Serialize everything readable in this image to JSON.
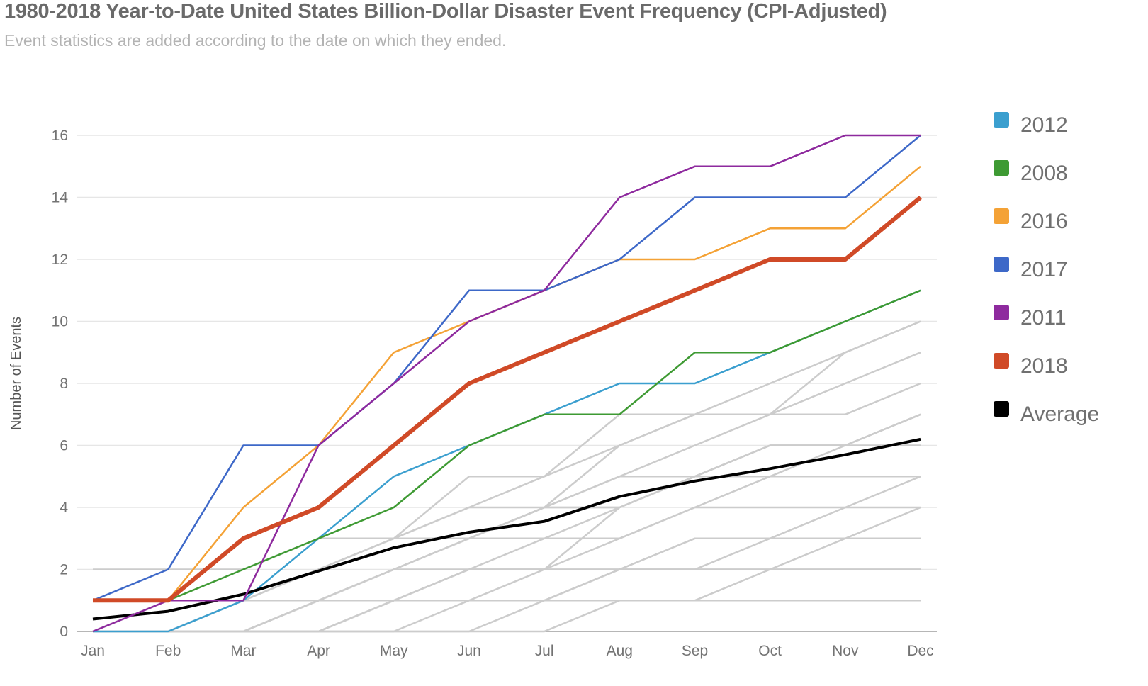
{
  "header": {
    "title": "1980-2018 Year-to-Date United States Billion-Dollar Disaster Event Frequency (CPI-Adjusted)",
    "subtitle": "Event statistics are added according to the date on which they ended."
  },
  "chart_data": {
    "type": "line",
    "title": "1980-2018 Year-to-Date United States Billion-Dollar Disaster Event Frequency (CPI-Adjusted)",
    "subtitle": "Event statistics are added according to the date on which they ended.",
    "xlabel": "",
    "ylabel": "Number of Events",
    "x": [
      "Jan",
      "Feb",
      "Mar",
      "Apr",
      "May",
      "Jun",
      "Jul",
      "Aug",
      "Sep",
      "Oct",
      "Nov",
      "Dec"
    ],
    "ylim": [
      0,
      16
    ],
    "yticks": [
      0,
      2,
      4,
      6,
      8,
      10,
      12,
      14,
      16
    ],
    "grid": true,
    "legend_position": "right",
    "series": [
      {
        "name": "2012",
        "color": "#3b9fcf",
        "values": [
          0,
          0,
          1,
          3,
          5,
          6,
          7,
          8,
          8,
          9,
          10,
          11
        ]
      },
      {
        "name": "2008",
        "color": "#3e9a33",
        "values": [
          1,
          1,
          2,
          3,
          4,
          6,
          7,
          7,
          9,
          9,
          10,
          11
        ]
      },
      {
        "name": "2016",
        "color": "#f4a236",
        "values": [
          1,
          1,
          4,
          6,
          9,
          10,
          11,
          12,
          12,
          13,
          13,
          15
        ]
      },
      {
        "name": "2017",
        "color": "#3d68c8",
        "values": [
          1,
          2,
          6,
          6,
          8,
          11,
          11,
          12,
          14,
          14,
          14,
          16
        ]
      },
      {
        "name": "2011",
        "color": "#8e2a9e",
        "values": [
          0,
          1,
          1,
          6,
          8,
          10,
          11,
          14,
          15,
          15,
          16,
          16
        ]
      },
      {
        "name": "2018",
        "color": "#d04a27",
        "values": [
          1,
          1,
          3,
          4,
          6,
          8,
          9,
          10,
          11,
          12,
          12,
          14
        ]
      },
      {
        "name": "Average",
        "color": "#000000",
        "values": [
          0.4,
          0.65,
          1.2,
          1.95,
          2.7,
          3.2,
          3.55,
          4.35,
          4.85,
          5.25,
          5.7,
          6.2
        ]
      }
    ],
    "other_years": {
      "color": "#cccccc",
      "note": "unlabeled gray lines for remaining years (approximate)",
      "series": [
        [
          0,
          0,
          0,
          1,
          2,
          3,
          4,
          6,
          7,
          7,
          9,
          10
        ],
        [
          0,
          0,
          1,
          2,
          3,
          4,
          5,
          6,
          7,
          8,
          9,
          10
        ],
        [
          0,
          1,
          1,
          2,
          3,
          5,
          5,
          7,
          7,
          7,
          8,
          9
        ],
        [
          0,
          0,
          0,
          1,
          2,
          3,
          4,
          5,
          6,
          7,
          7,
          8
        ],
        [
          0,
          0,
          1,
          1,
          2,
          3,
          4,
          5,
          5,
          6,
          6,
          7
        ],
        [
          0,
          0,
          0,
          0,
          1,
          2,
          2,
          4,
          5,
          6,
          6,
          7
        ],
        [
          2,
          2,
          2,
          3,
          3,
          4,
          4,
          4,
          5,
          6,
          6,
          7
        ],
        [
          0,
          0,
          0,
          1,
          2,
          2,
          3,
          4,
          5,
          5,
          6,
          6
        ],
        [
          1,
          1,
          1,
          2,
          3,
          3,
          4,
          4,
          5,
          5,
          5,
          5
        ],
        [
          0,
          0,
          1,
          1,
          2,
          3,
          3,
          3,
          4,
          5,
          5,
          5
        ],
        [
          0,
          0,
          0,
          0,
          1,
          2,
          2,
          3,
          4,
          4,
          4,
          5
        ],
        [
          0,
          0,
          0,
          1,
          1,
          2,
          2,
          2,
          3,
          3,
          4,
          4
        ],
        [
          0,
          0,
          0,
          0,
          1,
          1,
          1,
          2,
          3,
          3,
          3,
          4
        ],
        [
          0,
          0,
          0,
          1,
          1,
          1,
          2,
          2,
          2,
          3,
          3,
          3
        ],
        [
          0,
          0,
          0,
          0,
          0,
          1,
          1,
          2,
          2,
          2,
          3,
          3
        ],
        [
          0,
          0,
          0,
          0,
          0,
          0,
          1,
          2,
          2,
          2,
          2,
          2
        ],
        [
          0,
          0,
          0,
          0,
          1,
          1,
          1,
          1,
          1,
          2,
          2,
          2
        ],
        [
          0,
          0,
          0,
          0,
          0,
          0,
          0,
          1,
          1,
          1,
          1,
          1
        ]
      ]
    }
  }
}
